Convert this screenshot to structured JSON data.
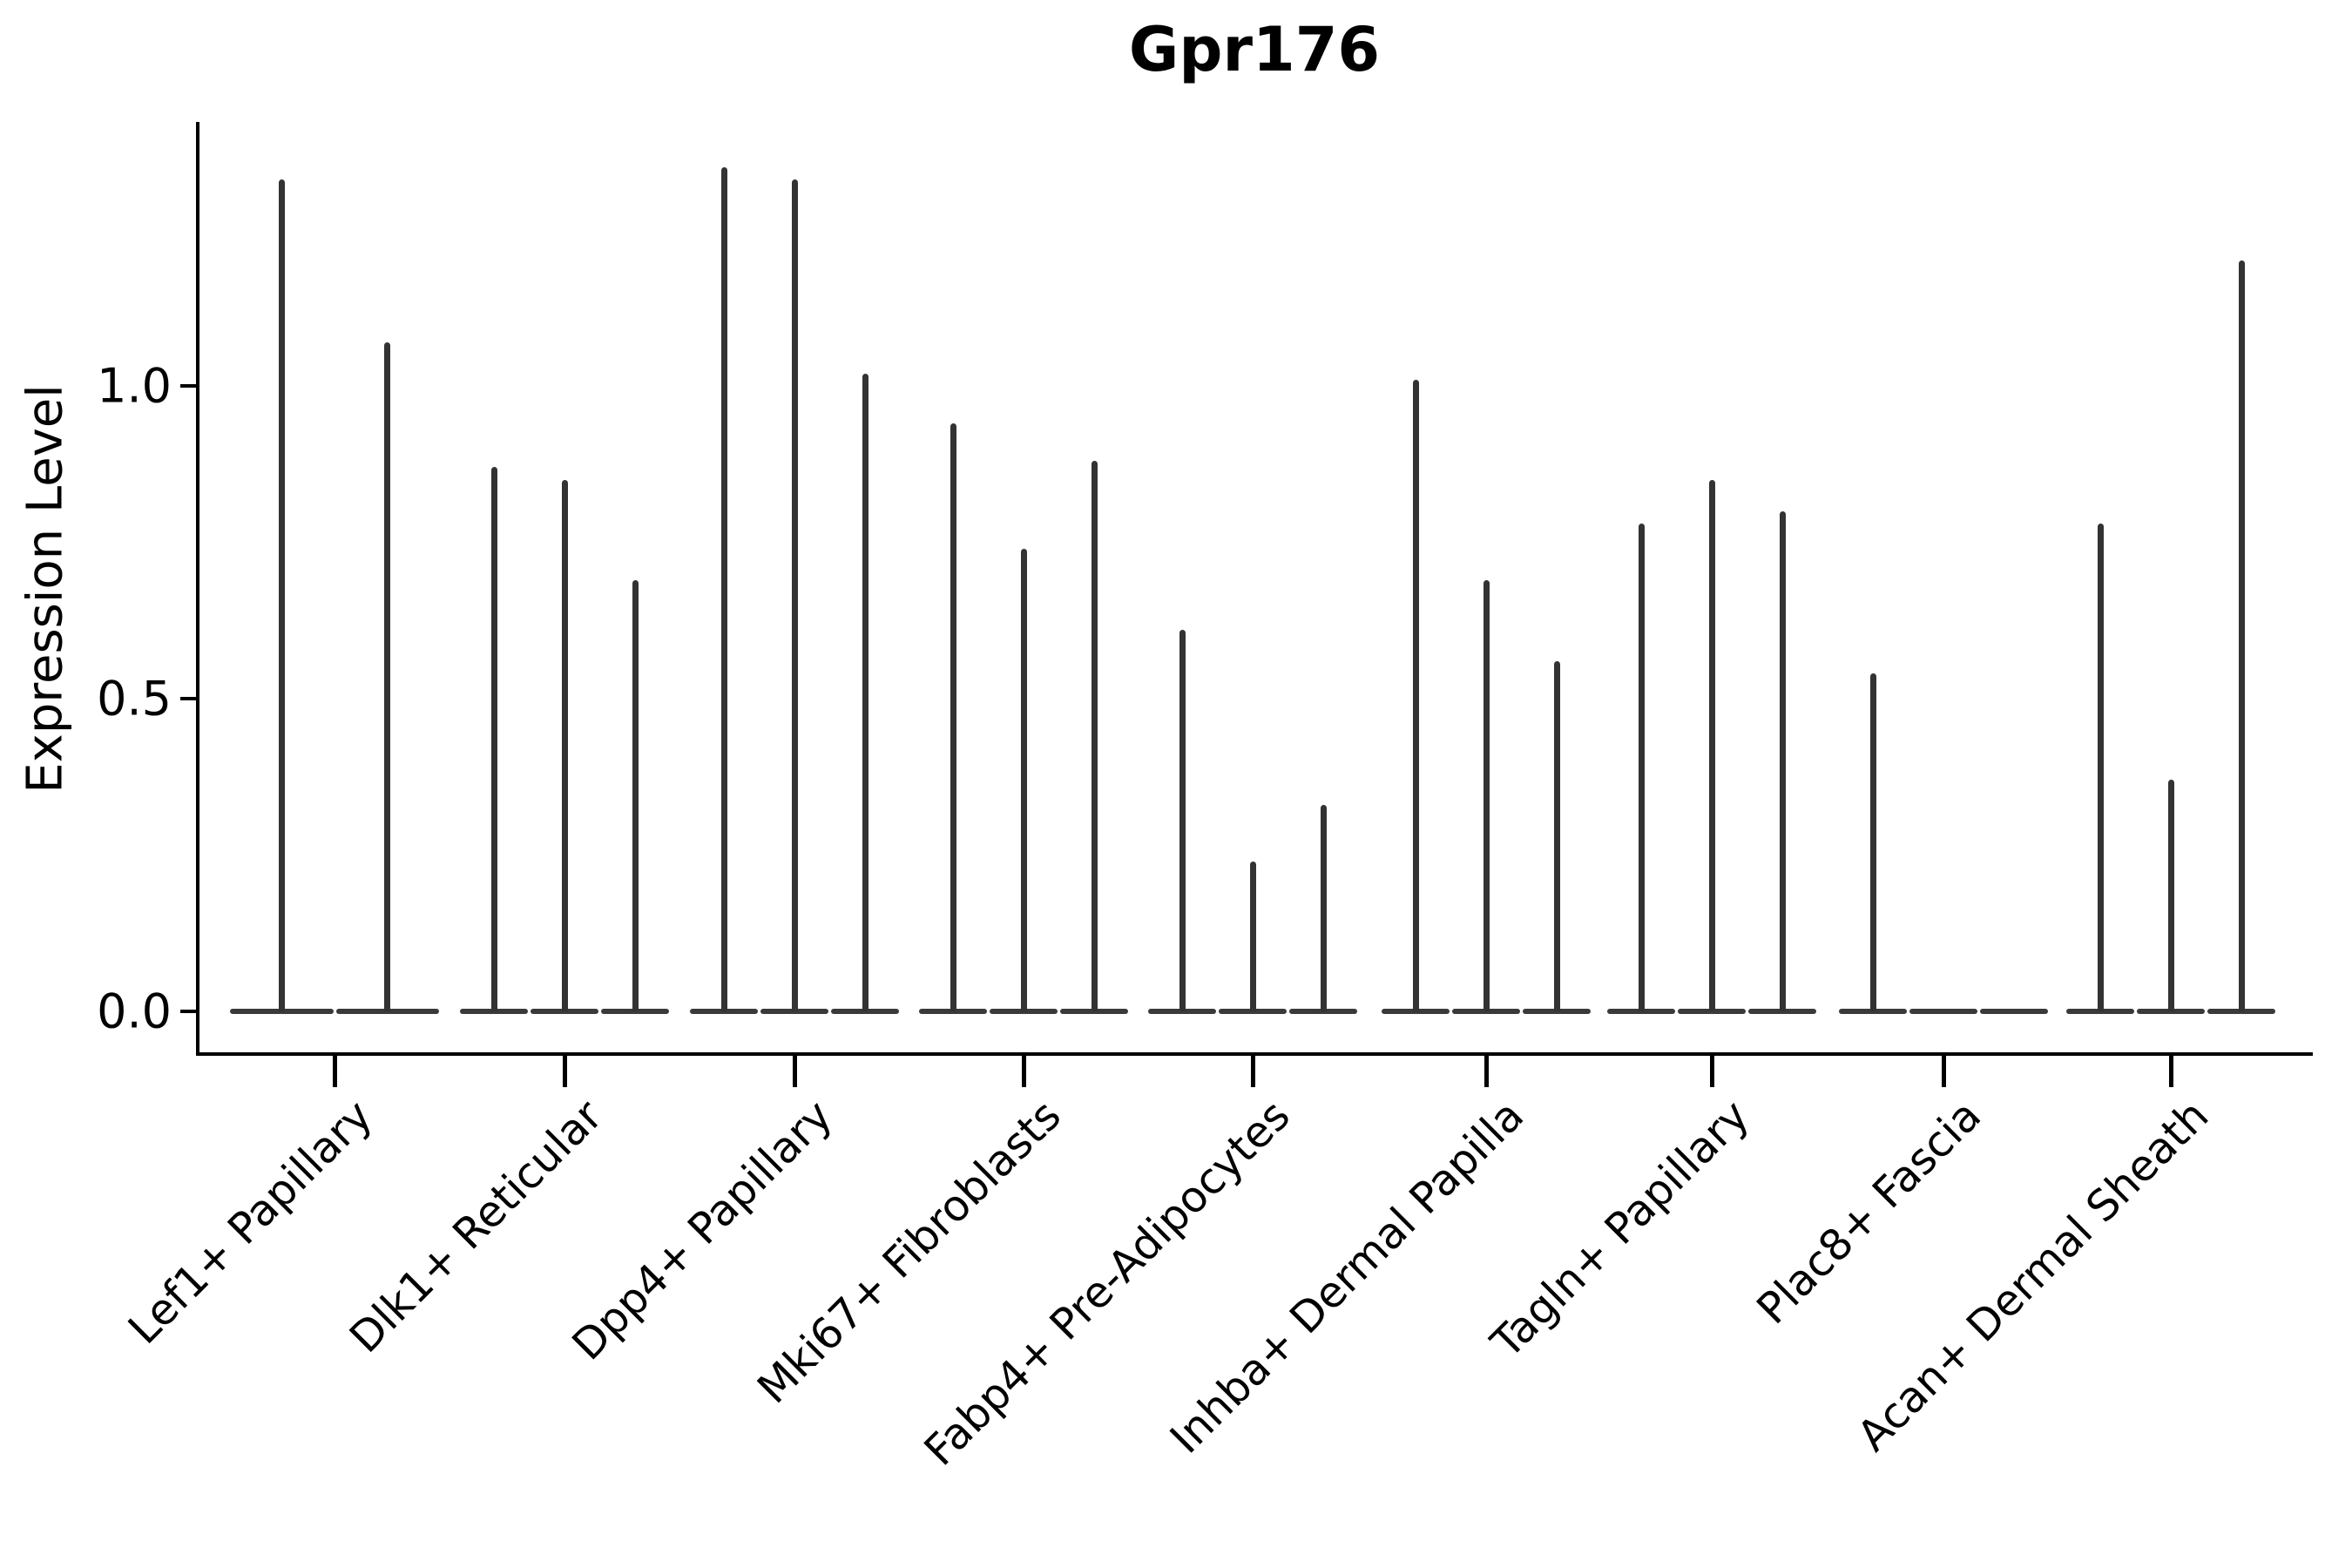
{
  "page": {
    "title": "Gpr176"
  },
  "chart_data": {
    "type": "violin",
    "title": "Gpr176",
    "subtitle": "",
    "xlabel": "",
    "ylabel": "Expression Level",
    "ylim": [
      -0.07,
      1.42
    ],
    "yticks": [
      {
        "value": 0.0,
        "label": "0.0"
      },
      {
        "value": 0.5,
        "label": "0.5"
      },
      {
        "value": 1.0,
        "label": "1.0"
      }
    ],
    "grid": false,
    "legend_position": "none",
    "x_tick_rotation": 45,
    "categories": [
      "Lef1+ Papillary",
      "Dlk1+ Reticular",
      "Dpp4+ Papillary",
      "Mki67+ Fibroblasts",
      "Fabp4+ Pre-Adipocytes",
      "Inhba+ Dermal Papilla",
      "Tagln+ Papillary",
      "Plac8+ Fascia",
      "Acan+ Dermal Sheath"
    ],
    "groups": [
      {
        "label": "Lef1+ Papillary",
        "violin_max": [
          1.33,
          1.07
        ]
      },
      {
        "label": "Dlk1+ Reticular",
        "violin_max": [
          0.87,
          0.85,
          0.69
        ]
      },
      {
        "label": "Dpp4+ Papillary",
        "violin_max": [
          1.35,
          1.33,
          1.02
        ]
      },
      {
        "label": "Mki67+ Fibroblasts",
        "violin_max": [
          0.94,
          0.74,
          0.88
        ]
      },
      {
        "label": "Fabp4+ Pre-Adipocytes",
        "violin_max": [
          0.61,
          0.24,
          0.33
        ]
      },
      {
        "label": "Inhba+ Dermal Papilla",
        "violin_max": [
          1.01,
          0.69,
          0.56
        ]
      },
      {
        "label": "Tagln+ Papillary",
        "violin_max": [
          0.78,
          0.85,
          0.8
        ]
      },
      {
        "label": "Plac8+ Fascia",
        "violin_max": [
          0.54,
          0.0,
          0.0
        ]
      },
      {
        "label": "Acan+ Dermal Sheath",
        "violin_max": [
          0.78,
          0.37,
          1.2
        ]
      }
    ],
    "description": "Needle-thin violin plot of Gpr176 expression; most cells at 0 with thin spikes to the maximum expressing cells. Violins per cluster: 2 for Lef1+ Papillary, 3 for all others (2nd and 3rd violins of Plac8+ Fascia are flat at zero).",
    "colors": {
      "violin": "#333333",
      "axis": "#000000",
      "text": "#000000",
      "background": "#ffffff"
    }
  }
}
